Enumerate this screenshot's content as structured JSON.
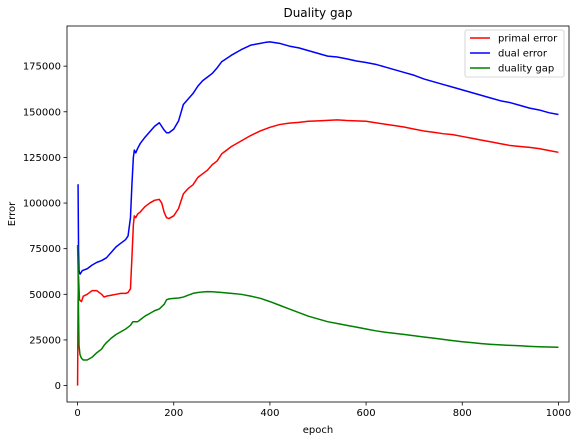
{
  "chart_data": {
    "type": "line",
    "title": "Duality gap",
    "xlabel": "epoch",
    "ylabel": "Error",
    "xlim": [
      -22,
      1022
    ],
    "ylim": [
      -9000,
      197000
    ],
    "x_ticks": [
      0,
      200,
      400,
      600,
      800,
      1000
    ],
    "y_ticks": [
      0,
      25000,
      50000,
      75000,
      100000,
      125000,
      150000,
      175000
    ],
    "x_tick_labels": [
      "0",
      "200",
      "400",
      "600",
      "800",
      "1000"
    ],
    "y_tick_labels": [
      "0",
      "25000",
      "50000",
      "75000",
      "100000",
      "125000",
      "150000",
      "175000"
    ],
    "grid": false,
    "legend_position": "top-right",
    "series": [
      {
        "name": "primal error",
        "color": "#ff0000",
        "points": [
          [
            0,
            0
          ],
          [
            1,
            45000
          ],
          [
            2,
            60000
          ],
          [
            4,
            47000
          ],
          [
            8,
            46000
          ],
          [
            12,
            49000
          ],
          [
            20,
            50000
          ],
          [
            30,
            52000
          ],
          [
            40,
            52000
          ],
          [
            50,
            50000
          ],
          [
            55,
            48500
          ],
          [
            60,
            49000
          ],
          [
            70,
            49500
          ],
          [
            80,
            50000
          ],
          [
            90,
            50500
          ],
          [
            100,
            50500
          ],
          [
            105,
            51000
          ],
          [
            110,
            53000
          ],
          [
            113,
            70000
          ],
          [
            116,
            88000
          ],
          [
            118,
            93000
          ],
          [
            121,
            92000
          ],
          [
            125,
            94000
          ],
          [
            130,
            95000
          ],
          [
            140,
            98000
          ],
          [
            150,
            100000
          ],
          [
            160,
            101500
          ],
          [
            170,
            102000
          ],
          [
            175,
            100000
          ],
          [
            180,
            95000
          ],
          [
            185,
            92000
          ],
          [
            190,
            91500
          ],
          [
            200,
            93000
          ],
          [
            210,
            97000
          ],
          [
            220,
            105000
          ],
          [
            230,
            108000
          ],
          [
            240,
            110000
          ],
          [
            250,
            114000
          ],
          [
            260,
            116000
          ],
          [
            270,
            118000
          ],
          [
            280,
            121000
          ],
          [
            290,
            123000
          ],
          [
            300,
            127000
          ],
          [
            320,
            131000
          ],
          [
            340,
            134000
          ],
          [
            360,
            137000
          ],
          [
            380,
            139500
          ],
          [
            400,
            141500
          ],
          [
            420,
            143000
          ],
          [
            440,
            143800
          ],
          [
            460,
            144200
          ],
          [
            480,
            144800
          ],
          [
            500,
            145000
          ],
          [
            520,
            145300
          ],
          [
            540,
            145600
          ],
          [
            560,
            145200
          ],
          [
            580,
            145000
          ],
          [
            600,
            144800
          ],
          [
            620,
            144000
          ],
          [
            640,
            143200
          ],
          [
            660,
            142400
          ],
          [
            680,
            141600
          ],
          [
            700,
            140500
          ],
          [
            720,
            139500
          ],
          [
            740,
            138800
          ],
          [
            760,
            138000
          ],
          [
            780,
            137500
          ],
          [
            800,
            136500
          ],
          [
            820,
            135500
          ],
          [
            840,
            134500
          ],
          [
            860,
            133500
          ],
          [
            880,
            132500
          ],
          [
            900,
            131500
          ],
          [
            920,
            131000
          ],
          [
            940,
            130500
          ],
          [
            960,
            129800
          ],
          [
            980,
            128800
          ],
          [
            1000,
            127800
          ]
        ]
      },
      {
        "name": "dual error",
        "color": "#0000ff",
        "points": [
          [
            0,
            110000
          ],
          [
            1,
            110000
          ],
          [
            2,
            75000
          ],
          [
            3,
            63000
          ],
          [
            5,
            61000
          ],
          [
            10,
            63000
          ],
          [
            20,
            64000
          ],
          [
            30,
            66000
          ],
          [
            40,
            67500
          ],
          [
            50,
            68500
          ],
          [
            60,
            70000
          ],
          [
            70,
            73000
          ],
          [
            80,
            76000
          ],
          [
            90,
            78000
          ],
          [
            100,
            80000
          ],
          [
            105,
            82000
          ],
          [
            110,
            92000
          ],
          [
            113,
            110000
          ],
          [
            116,
            125000
          ],
          [
            118,
            129000
          ],
          [
            121,
            127500
          ],
          [
            125,
            130000
          ],
          [
            130,
            132500
          ],
          [
            140,
            136000
          ],
          [
            150,
            139000
          ],
          [
            160,
            142000
          ],
          [
            170,
            144000
          ],
          [
            175,
            142000
          ],
          [
            180,
            140000
          ],
          [
            185,
            138500
          ],
          [
            190,
            138500
          ],
          [
            200,
            140500
          ],
          [
            210,
            145000
          ],
          [
            220,
            154000
          ],
          [
            230,
            157000
          ],
          [
            240,
            160000
          ],
          [
            250,
            164000
          ],
          [
            260,
            167000
          ],
          [
            270,
            169000
          ],
          [
            280,
            171000
          ],
          [
            290,
            174000
          ],
          [
            300,
            177500
          ],
          [
            320,
            181000
          ],
          [
            340,
            184000
          ],
          [
            360,
            186500
          ],
          [
            380,
            187500
          ],
          [
            390,
            188000
          ],
          [
            400,
            188300
          ],
          [
            420,
            187500
          ],
          [
            440,
            186000
          ],
          [
            460,
            185000
          ],
          [
            480,
            183500
          ],
          [
            500,
            182000
          ],
          [
            520,
            180500
          ],
          [
            540,
            180000
          ],
          [
            560,
            179000
          ],
          [
            580,
            177800
          ],
          [
            600,
            177000
          ],
          [
            620,
            176000
          ],
          [
            640,
            174500
          ],
          [
            660,
            173000
          ],
          [
            680,
            171500
          ],
          [
            700,
            170000
          ],
          [
            720,
            168000
          ],
          [
            740,
            166500
          ],
          [
            760,
            165000
          ],
          [
            780,
            163500
          ],
          [
            800,
            162000
          ],
          [
            820,
            160500
          ],
          [
            840,
            159000
          ],
          [
            860,
            157500
          ],
          [
            880,
            156000
          ],
          [
            900,
            155000
          ],
          [
            920,
            153500
          ],
          [
            940,
            152000
          ],
          [
            960,
            151000
          ],
          [
            980,
            149500
          ],
          [
            1000,
            148500
          ]
        ]
      },
      {
        "name": "duality gap",
        "color": "#008000",
        "points": [
          [
            0,
            77000
          ],
          [
            1,
            65000
          ],
          [
            2,
            40000
          ],
          [
            3,
            22000
          ],
          [
            5,
            17000
          ],
          [
            8,
            15000
          ],
          [
            12,
            14000
          ],
          [
            20,
            14000
          ],
          [
            30,
            15500
          ],
          [
            40,
            18000
          ],
          [
            50,
            20000
          ],
          [
            55,
            22000
          ],
          [
            60,
            23500
          ],
          [
            70,
            26000
          ],
          [
            80,
            28000
          ],
          [
            90,
            29500
          ],
          [
            100,
            31000
          ],
          [
            105,
            32000
          ],
          [
            110,
            33000
          ],
          [
            115,
            35000
          ],
          [
            125,
            35000
          ],
          [
            130,
            36000
          ],
          [
            140,
            38000
          ],
          [
            150,
            39500
          ],
          [
            160,
            41000
          ],
          [
            170,
            42000
          ],
          [
            180,
            44500
          ],
          [
            185,
            47000
          ],
          [
            190,
            47500
          ],
          [
            200,
            47800
          ],
          [
            210,
            48000
          ],
          [
            220,
            48500
          ],
          [
            230,
            49500
          ],
          [
            240,
            50500
          ],
          [
            250,
            51000
          ],
          [
            260,
            51300
          ],
          [
            270,
            51500
          ],
          [
            280,
            51400
          ],
          [
            300,
            51000
          ],
          [
            320,
            50500
          ],
          [
            340,
            50000
          ],
          [
            360,
            49000
          ],
          [
            380,
            47800
          ],
          [
            400,
            46000
          ],
          [
            420,
            44000
          ],
          [
            440,
            42000
          ],
          [
            460,
            40000
          ],
          [
            480,
            38000
          ],
          [
            500,
            36500
          ],
          [
            520,
            35000
          ],
          [
            540,
            34000
          ],
          [
            560,
            33000
          ],
          [
            580,
            32000
          ],
          [
            600,
            31000
          ],
          [
            620,
            30000
          ],
          [
            640,
            29200
          ],
          [
            660,
            28600
          ],
          [
            680,
            28000
          ],
          [
            700,
            27300
          ],
          [
            720,
            26600
          ],
          [
            740,
            26000
          ],
          [
            760,
            25300
          ],
          [
            780,
            24600
          ],
          [
            800,
            24000
          ],
          [
            820,
            23500
          ],
          [
            840,
            23000
          ],
          [
            860,
            22600
          ],
          [
            880,
            22300
          ],
          [
            900,
            22000
          ],
          [
            920,
            21800
          ],
          [
            940,
            21500
          ],
          [
            960,
            21300
          ],
          [
            980,
            21100
          ],
          [
            1000,
            21000
          ]
        ]
      }
    ]
  }
}
